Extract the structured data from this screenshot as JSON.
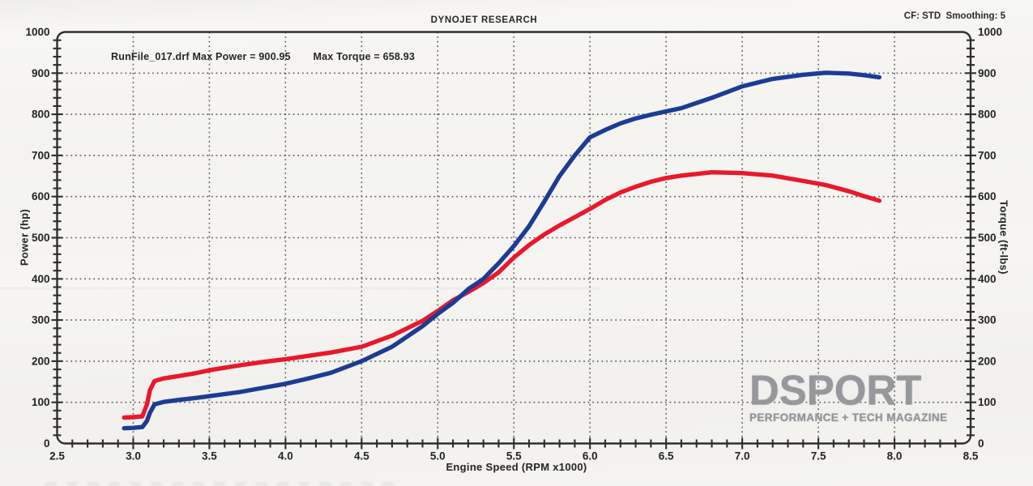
{
  "header": {
    "title": "DYNOJET RESEARCH",
    "cf_smoothing": "CF: STD  Smoothing: 5"
  },
  "annotation": {
    "run_max_power": "RunFile_017.drf Max Power = 900.95",
    "max_torque": "Max Torque = 658.93"
  },
  "watermark": {
    "brand": "DSPORT",
    "tagline": "PERFORMANCE + TECH MAGAZINE"
  },
  "chart_data": {
    "type": "line",
    "title": "DYNOJET RESEARCH",
    "xlabel": "Engine Speed (RPM x1000)",
    "ylabel_left": "Power (hp)",
    "ylabel_right": "Torque (ft-lbs)",
    "xlim": [
      2.5,
      8.5
    ],
    "ylim": [
      0,
      1000
    ],
    "x_ticks": [
      "2.5",
      "3.0",
      "3.5",
      "4.0",
      "4.5",
      "5.0",
      "5.5",
      "6.0",
      "6.5",
      "7.0",
      "7.5",
      "8.0",
      "8.5"
    ],
    "y_ticks": [
      "0",
      "100",
      "200",
      "300",
      "400",
      "500",
      "600",
      "700",
      "800",
      "900",
      "1000"
    ],
    "x_minor_step": 0.1,
    "y_minor_step": 20,
    "grid": "dotted",
    "legend_position": "none",
    "max_power": 900.95,
    "max_torque": 658.93,
    "x": [
      2.94,
      3.0,
      3.06,
      3.09,
      3.11,
      3.14,
      3.2,
      3.3,
      3.4,
      3.5,
      3.7,
      3.85,
      4.0,
      4.15,
      4.3,
      4.5,
      4.7,
      4.9,
      5.0,
      5.1,
      5.15,
      5.2,
      5.3,
      5.4,
      5.5,
      5.6,
      5.7,
      5.8,
      5.9,
      6.0,
      6.1,
      6.2,
      6.3,
      6.4,
      6.5,
      6.6,
      6.8,
      7.0,
      7.2,
      7.4,
      7.55,
      7.7,
      7.8,
      7.9
    ],
    "series": [
      {
        "name": "Power (hp)",
        "color": "#1c3c94",
        "values": [
          37,
          38,
          40,
          55,
          75,
          95,
          101,
          106,
          110,
          115,
          125,
          135,
          145,
          158,
          172,
          200,
          235,
          285,
          315,
          342,
          358,
          375,
          400,
          438,
          480,
          528,
          588,
          650,
          700,
          744,
          762,
          778,
          790,
          799,
          807,
          815,
          840,
          868,
          886,
          896,
          901,
          899,
          895,
          890
        ]
      },
      {
        "name": "Torque (ft-lbs)",
        "color": "#e8192b",
        "values": [
          63,
          64,
          66,
          95,
          130,
          152,
          158,
          164,
          170,
          178,
          190,
          198,
          205,
          213,
          221,
          235,
          262,
          298,
          322,
          348,
          358,
          368,
          390,
          416,
          452,
          482,
          508,
          530,
          550,
          570,
          592,
          610,
          624,
          636,
          645,
          651,
          659,
          657,
          651,
          638,
          628,
          613,
          601,
          590
        ]
      }
    ]
  },
  "colors": {
    "paper": "#f4f3f0",
    "frame": "#2e2e2e",
    "grid": "#4a4a4a",
    "text": "#242424",
    "power_curve": "#1c3c94",
    "torque_curve": "#e8192b",
    "watermark_gray": "#96989b"
  }
}
